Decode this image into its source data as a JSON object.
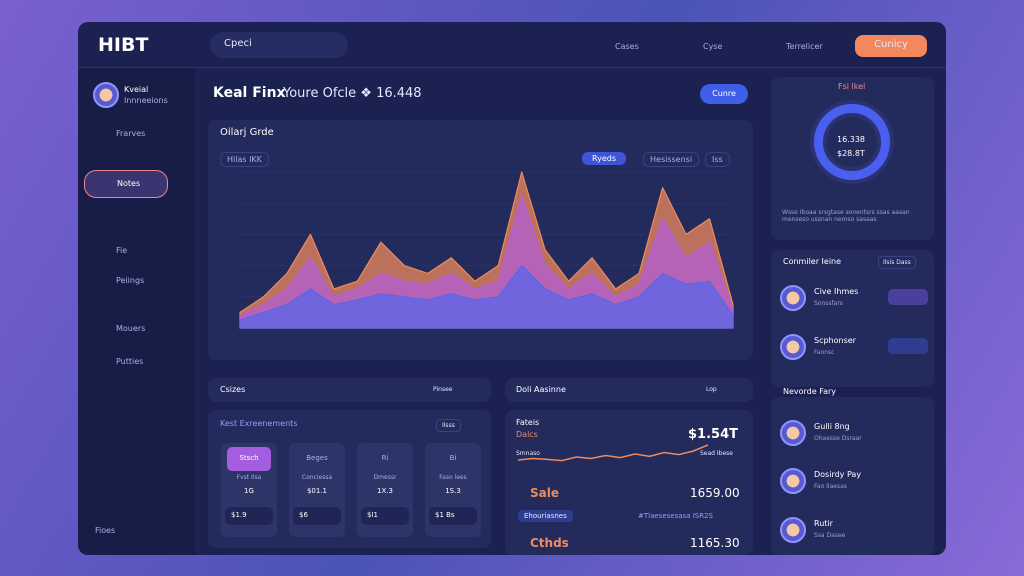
{
  "header": {
    "logo": "HIBT",
    "search": "Cpeci",
    "nav": [
      "Cases",
      "Cyse",
      "Terrelicer"
    ],
    "button": "Cunicy"
  },
  "user": {
    "name": "Kveial",
    "role": "Innneeions"
  },
  "sidebar": [
    "Frarves",
    "Notes",
    "Fie",
    "Peiings",
    "Mouers",
    "Putties"
  ],
  "sidebar_footer": "Fioes",
  "page": {
    "title": "Keal Finx",
    "subtitle": "Youre Ofcle ❖ 16.448",
    "button": "Cunre"
  },
  "main_chart": {
    "type": "area",
    "title": "Oilarj Grde",
    "chips": [
      "Hilas IKK",
      "Ryeds",
      "Hesissensi",
      "Iss"
    ],
    "ylim": [
      0,
      100
    ],
    "series": [
      {
        "color": "#f08a5d",
        "values": [
          10,
          20,
          35,
          60,
          25,
          30,
          55,
          40,
          35,
          45,
          30,
          40,
          100,
          50,
          30,
          45,
          25,
          35,
          90,
          60,
          70,
          15
        ]
      },
      {
        "color": "#b45fd6",
        "values": [
          8,
          15,
          25,
          45,
          20,
          25,
          35,
          30,
          28,
          35,
          25,
          30,
          85,
          40,
          25,
          35,
          20,
          28,
          70,
          45,
          55,
          12
        ]
      },
      {
        "color": "#5866e8",
        "values": [
          5,
          10,
          15,
          25,
          15,
          18,
          22,
          20,
          18,
          22,
          18,
          20,
          40,
          25,
          18,
          22,
          15,
          20,
          35,
          28,
          30,
          8
        ]
      }
    ]
  },
  "donut": {
    "title": "Fsi lkel",
    "value": "16.338",
    "sub": "$28.8T",
    "note": "Wsse Iboaa srsgtase sonentsrs ssas aasan menseso ussnan nemso sasaas"
  },
  "contacts": {
    "title": "Conmiler Ieine",
    "tag": "Ilsis Dass",
    "rows": [
      {
        "name": "Cive Ihmes",
        "sub": "Sonssfars"
      },
      {
        "name": "Scphonser",
        "sub": "Faonsc"
      }
    ]
  },
  "activity": {
    "title": "Nevorde Fary",
    "rows": [
      {
        "name": "Gulli 8ng",
        "sub": "Ohaesse Dsraar"
      },
      {
        "name": "Dosirdy Pay",
        "sub": "Fao Ilaesas"
      },
      {
        "name": "Rutir",
        "sub": "Ssa Dasee"
      }
    ]
  },
  "cases": {
    "title": "Csizes",
    "tag": "Pinsee",
    "panel_title": "Kest Exreenements",
    "panel_tag": "Ilsss",
    "cards": [
      {
        "head": "Stsch",
        "label": "Fvst Ilsa",
        "value": "1G",
        "foot": "$1.9"
      },
      {
        "head": "Beges",
        "label": "Conciessa",
        "value": "$01.1",
        "foot": "$6"
      },
      {
        "head": "Ri",
        "label": "Dmessr",
        "value": "1X.3",
        "foot": "$I1"
      },
      {
        "head": "Bi",
        "label": "Faso lees",
        "value": "1S.3",
        "foot": "$1 Bs"
      }
    ]
  },
  "sales": {
    "title": "Doli Aasinne",
    "tag": "Lop",
    "label": "Fateis",
    "label2": "Dalcs",
    "total": "$1.54T",
    "spark_label": "Smnaso",
    "spark_tag": "Sead Ibese",
    "spark": {
      "ylim": [
        0,
        100
      ],
      "values": [
        40,
        45,
        42,
        38,
        50,
        45,
        55,
        48,
        60,
        52,
        65,
        58,
        70,
        90
      ]
    },
    "sale": "Sale",
    "sale_value": "1659.00",
    "chip": "Ehouriasnes",
    "chip2": "#Tlaesesesasa ISR2S",
    "child": "Cthds",
    "child_value": "1165.30"
  }
}
